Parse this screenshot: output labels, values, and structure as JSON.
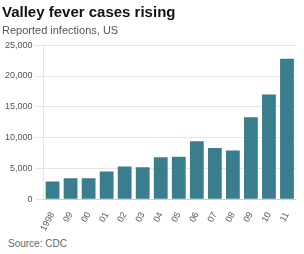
{
  "chart_data": {
    "type": "bar",
    "title": "Valley fever cases rising",
    "subtitle": "Reported infections, US",
    "source": "Source: CDC",
    "categories": [
      "1998",
      "99",
      "00",
      "01",
      "02",
      "03",
      "04",
      "05",
      "06",
      "07",
      "08",
      "09",
      "10",
      "11"
    ],
    "values": [
      2900,
      3400,
      3400,
      4500,
      5300,
      5200,
      6800,
      6900,
      9400,
      8300,
      7900,
      13300,
      17000,
      22800
    ],
    "color": "#3a7d8c",
    "ylim": [
      0,
      25000
    ],
    "yticks": [
      0,
      {
        "value": 5000,
        "label": "5,000"
      },
      {
        "value": 10000,
        "label": "10,000"
      },
      {
        "value": 15000,
        "label": "15,000"
      },
      {
        "value": 20000,
        "label": "20,000"
      },
      {
        "value": 25000,
        "label": "25,000"
      }
    ],
    "grid": true
  }
}
